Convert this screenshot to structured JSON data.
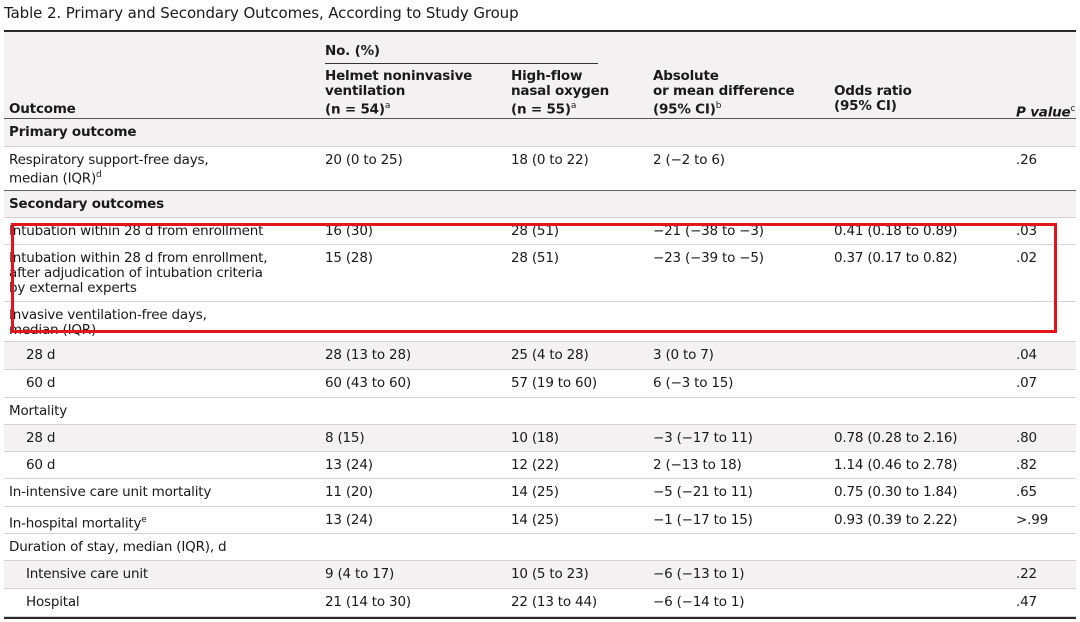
{
  "title": "Table 2. Primary and Secondary Outcomes, According to Study Group",
  "header": {
    "group_label": "No. (%)",
    "outcome": "Outcome",
    "col1": [
      "Helmet noninvasive",
      "ventilation",
      "(n = 54)"
    ],
    "col1_sup": "a",
    "col2": [
      "High-flow",
      "nasal oxygen",
      "(n = 55)"
    ],
    "col2_sup": "a",
    "col3": [
      "Absolute",
      "or mean difference",
      "(95% CI)"
    ],
    "col3_sup": "b",
    "col4": [
      "Odds ratio",
      "(95% CI)"
    ],
    "col5": "P value",
    "col5_sup": "c"
  },
  "rows": [
    {
      "type": "section",
      "outcome": "Primary outcome"
    },
    {
      "type": "data",
      "outcome": "Respiratory support-free days,",
      "outcome2": "median (IQR)",
      "sup": "d",
      "helmet": "20 (0 to 25)",
      "hfno": "18 (0 to 22)",
      "diff": "2 (−2 to 6)",
      "or": "",
      "p": ".26"
    },
    {
      "type": "section",
      "outcome": "Secondary outcomes"
    },
    {
      "type": "data",
      "outcome": "Intubation within 28 d from enrollment",
      "helmet": "16 (30)",
      "hfno": "28 (51)",
      "diff": "−21 (−38 to −3)",
      "or": "0.41 (0.18 to 0.89)",
      "p": ".03"
    },
    {
      "type": "data",
      "outcome": "Intubation within 28 d from enrollment,",
      "outcome2": "after adjudication of intubation criteria",
      "outcome3": "by external experts",
      "helmet": "15 (28)",
      "hfno": "28 (51)",
      "diff": "−23 (−39 to −5)",
      "or": "0.37 (0.17 to 0.82)",
      "p": ".02"
    },
    {
      "type": "label",
      "outcome": "Invasive ventilation-free days,",
      "outcome2": "median (IQR)"
    },
    {
      "type": "sub",
      "outcome": "28 d",
      "helmet": "28 (13 to 28)",
      "hfno": "25 (4 to 28)",
      "diff": "3 (0 to 7)",
      "or": "",
      "p": ".04"
    },
    {
      "type": "sub",
      "outcome": "60 d",
      "helmet": "60 (43 to 60)",
      "hfno": "57 (19 to 60)",
      "diff": "6 (−3 to 15)",
      "or": "",
      "p": ".07"
    },
    {
      "type": "label",
      "outcome": "Mortality"
    },
    {
      "type": "sub",
      "outcome": "28 d",
      "helmet": "8 (15)",
      "hfno": "10 (18)",
      "diff": "−3 (−17 to 11)",
      "or": "0.78 (0.28 to 2.16)",
      "p": ".80"
    },
    {
      "type": "sub",
      "outcome": "60 d",
      "helmet": "13 (24)",
      "hfno": "12 (22)",
      "diff": "2 (−13 to 18)",
      "or": "1.14 (0.46 to 2.78)",
      "p": ".82"
    },
    {
      "type": "data",
      "outcome": "In-intensive care unit mortality",
      "helmet": "11 (20)",
      "hfno": "14 (25)",
      "diff": "−5 (−21 to 11)",
      "or": "0.75 (0.30 to 1.84)",
      "p": ".65"
    },
    {
      "type": "data",
      "outcome": "In-hospital mortality",
      "sup": "e",
      "helmet": "13 (24)",
      "hfno": "14 (25)",
      "diff": "−1 (−17 to 15)",
      "or": "0.93 (0.39 to 2.22)",
      "p": ">.99"
    },
    {
      "type": "label",
      "outcome": "Duration of stay, median (IQR), d"
    },
    {
      "type": "sub",
      "outcome": "Intensive care unit",
      "helmet": "9 (4 to 17)",
      "hfno": "10 (5 to 23)",
      "diff": "−6 (−13 to 1)",
      "or": "",
      "p": ".22"
    },
    {
      "type": "sub",
      "outcome": "Hospital",
      "helmet": "21 (14 to 30)",
      "hfno": "22 (13 to 44)",
      "diff": "−6 (−14 to 1)",
      "or": "",
      "p": ".47"
    }
  ],
  "highlight_color": "#e3151a"
}
